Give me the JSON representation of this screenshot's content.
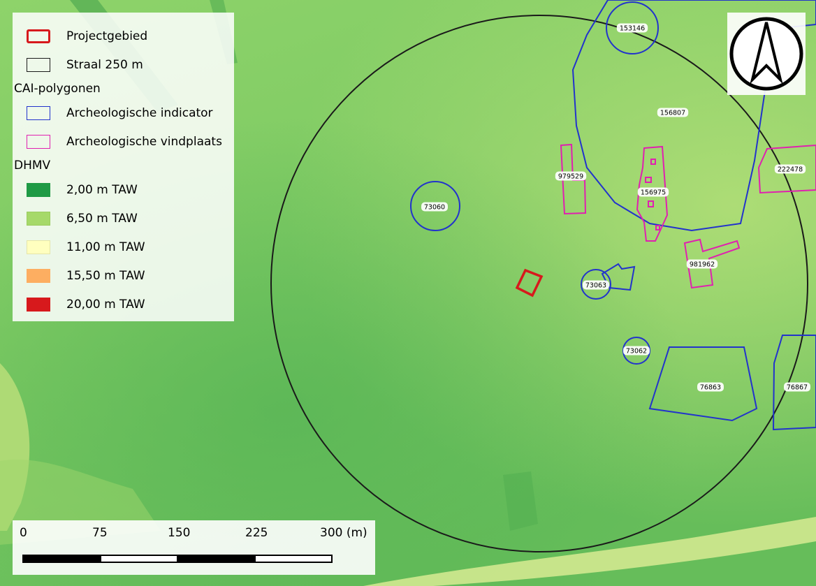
{
  "legend": {
    "project_area": "Projectgebied",
    "radius": "Straal 250 m",
    "cai_heading": "CAI-polygonen",
    "arch_indicator": "Archeologische indicator",
    "arch_site": "Archeologische vindplaats",
    "dhmv_heading": "DHMV",
    "dhmv_classes": [
      {
        "label": "2,00 m TAW",
        "color": "#1f9a45"
      },
      {
        "label": "6,50 m TAW",
        "color": "#a6d96a"
      },
      {
        "label": "11,00 m TAW",
        "color": "#ffffbf"
      },
      {
        "label": "15,50 m TAW",
        "color": "#fdae61"
      },
      {
        "label": "20,00 m TAW",
        "color": "#d7191c"
      }
    ]
  },
  "colors": {
    "project_area": "#d7191c",
    "radius": "#1a1a1a",
    "arch_indicator": "#2233cc",
    "arch_site": "#e020b0"
  },
  "scalebar": {
    "ticks": [
      "0",
      "75",
      "150",
      "225",
      "300 (m)"
    ]
  },
  "north_arrow": {
    "icon": "north-arrow-icon"
  },
  "features": {
    "indicators": [
      "153146",
      "156807",
      "73060",
      "73063",
      "73062",
      "76863",
      "76867"
    ],
    "sites": [
      "979529",
      "156975",
      "981962",
      "222478"
    ]
  }
}
